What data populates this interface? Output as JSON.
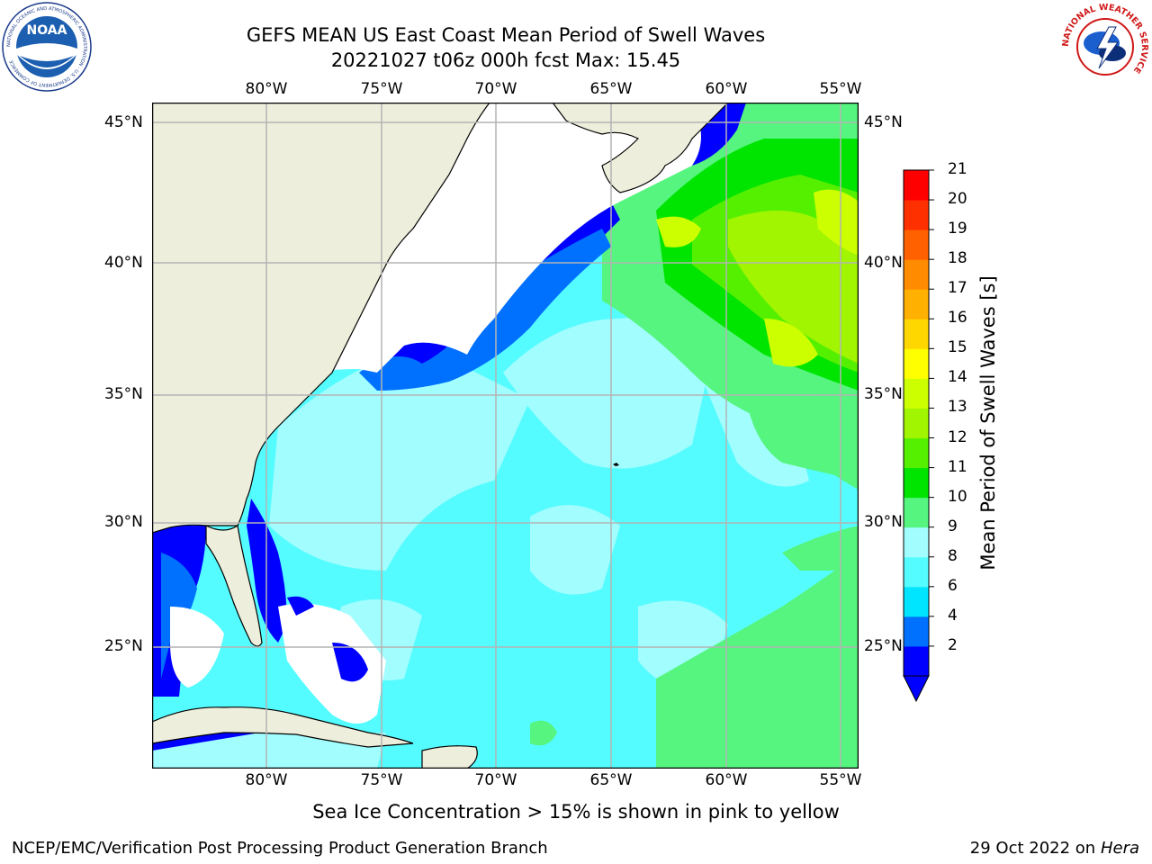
{
  "header": {
    "title_line1": "GEFS MEAN US East Coast Mean Period of Swell Waves",
    "title_line2": "20221027 t06z 000h fcst   Max: 15.45"
  },
  "logos": {
    "noaa": {
      "icon": "noaa-logo",
      "text": "NOAA",
      "ring_text": "NATIONAL OCEANIC AND ATMOSPHERIC ADMINISTRATION · U.S. DEPARTMENT OF COMMERCE"
    },
    "nws": {
      "icon": "nws-logo",
      "ring_text": "NATIONAL WEATHER SERVICE"
    }
  },
  "map": {
    "lon_labels": [
      "80°W",
      "75°W",
      "70°W",
      "65°W",
      "60°W",
      "55°W"
    ],
    "lat_labels": [
      "45°N",
      "40°N",
      "35°N",
      "30°N",
      "25°N"
    ],
    "lon_range": [
      -84.8,
      -54.7
    ],
    "lat_range": [
      20.4,
      45.8
    ],
    "grid": true,
    "colors": {
      "land": "#eeeedc",
      "no_data": "#ffffff",
      "grid": "#b4b4b4",
      "coast": "#000000"
    }
  },
  "colorbar": {
    "label": "Mean Period of Swell Waves [s]",
    "ticks": [
      "21",
      "20",
      "19",
      "18",
      "17",
      "16",
      "15",
      "14",
      "13",
      "12",
      "11",
      "10",
      "9",
      "8",
      "6",
      "4",
      "2"
    ],
    "levels": [
      2,
      4,
      6,
      8,
      9,
      10,
      11,
      12,
      13,
      14,
      15,
      16,
      17,
      18,
      19,
      20,
      21
    ],
    "colors": [
      "#0000ff",
      "#0070ff",
      "#00e5ff",
      "#55fcff",
      "#a2fdff",
      "#55f57f",
      "#00e500",
      "#55f000",
      "#a2f500",
      "#ccff00",
      "#ffff00",
      "#ffd700",
      "#ffb000",
      "#ff8c00",
      "#ff6000",
      "#ff3000",
      "#ff0000"
    ],
    "extend": "min",
    "extend_color": "#0000ff"
  },
  "footer": {
    "note": "Sea Ice Concentration > 15% is shown in pink to yellow",
    "credit": "NCEP/EMC/Verification Post Processing Product Generation Branch",
    "date": "29 Oct 2022 on ",
    "machine": "Hera"
  }
}
